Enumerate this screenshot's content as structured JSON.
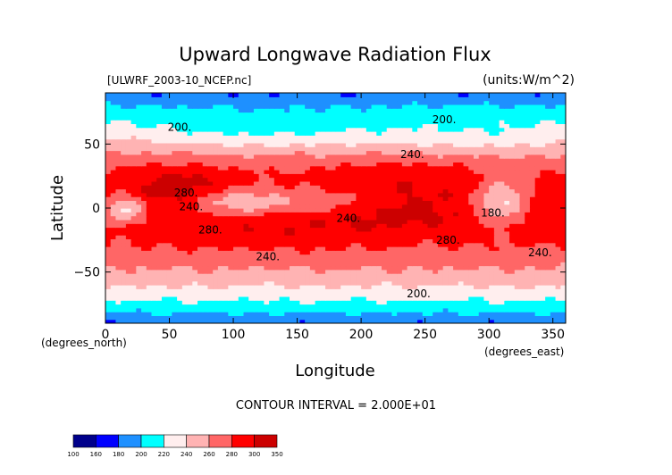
{
  "chart_data": {
    "type": "heatmap",
    "title": "Upward Longwave Radiation Flux",
    "file_label": "[ULWRF_2003-10_NCEP.nc]",
    "units_label": "(units:W/m^2)",
    "xlabel": "Longitude",
    "ylabel": "Latitude",
    "x_units": "(degrees_east)",
    "y_units": "(degrees_north)",
    "xlim": [
      0,
      360
    ],
    "ylim": [
      -90,
      90
    ],
    "x_ticks": [
      0,
      50,
      100,
      150,
      200,
      250,
      300,
      350
    ],
    "y_ticks": [
      -50,
      0,
      50
    ],
    "contour_interval_text": "CONTOUR INTERVAL = 2.000E+01",
    "contour_labels": [
      {
        "text": "200.",
        "lon": 58,
        "lat": 63
      },
      {
        "text": "200.",
        "lon": 265,
        "lat": 69
      },
      {
        "text": "240.",
        "lon": 240,
        "lat": 42
      },
      {
        "text": "280.",
        "lon": 63,
        "lat": 12
      },
      {
        "text": "240.",
        "lon": 67,
        "lat": 1
      },
      {
        "text": "280.",
        "lon": 82,
        "lat": -17
      },
      {
        "text": "240.",
        "lon": 190,
        "lat": -8
      },
      {
        "text": "280.",
        "lon": 268,
        "lat": -25
      },
      {
        "text": "240.",
        "lon": 340,
        "lat": -35
      },
      {
        "text": "240.",
        "lon": 127,
        "lat": -38
      },
      {
        "text": "200.",
        "lon": 245,
        "lat": -67
      },
      {
        "text": "180.",
        "lon": 303,
        "lat": -4
      }
    ],
    "colorbar": {
      "levels": [
        100,
        160,
        180,
        200,
        220,
        240,
        260,
        280,
        300,
        350
      ],
      "colors": [
        "#00008b",
        "#0000ff",
        "#1e90ff",
        "#00ffff",
        "#ffeeee",
        "#ffb3b3",
        "#ff6666",
        "#ff0000",
        "#cc0000"
      ]
    }
  }
}
